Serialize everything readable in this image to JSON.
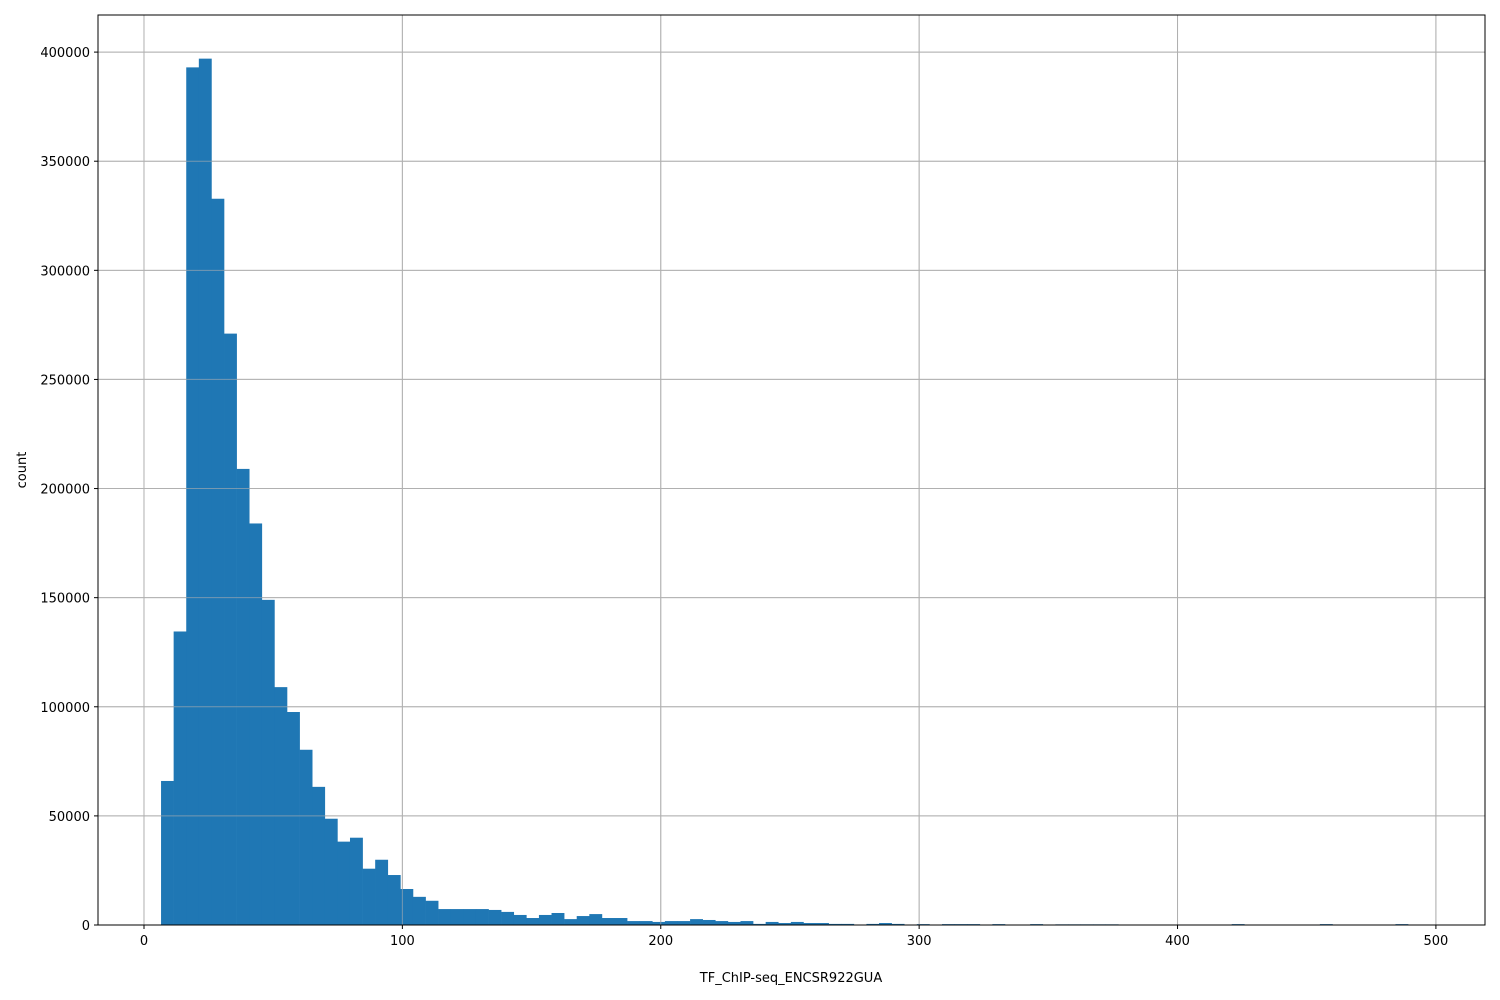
{
  "chart_data": {
    "type": "bar",
    "subtype": "histogram",
    "title": "",
    "xlabel": "TF_ChIP-seq_ENCSR922GUA",
    "ylabel": "count",
    "xlim": [
      -17.8,
      519
    ],
    "ylim": [
      0,
      417000
    ],
    "grid": true,
    "bar_color": "#1f77b4",
    "grid_color": "#b0b0b0",
    "bin_start": 6.6,
    "bin_width": 4.875,
    "values": [
      66000,
      134500,
      393000,
      397000,
      332800,
      271000,
      209000,
      184000,
      149000,
      109000,
      97600,
      80300,
      63300,
      48700,
      38200,
      40000,
      25800,
      29900,
      22900,
      16500,
      12900,
      11100,
      7300,
      7300,
      7300,
      7300,
      6900,
      6000,
      4600,
      3200,
      4600,
      5500,
      2700,
      4100,
      5000,
      3200,
      3200,
      1800,
      1800,
      1400,
      1800,
      1800,
      2700,
      2300,
      1800,
      1400,
      1800,
      500,
      1400,
      900,
      1400,
      900,
      900,
      500,
      500,
      200,
      500,
      900,
      500,
      200,
      400,
      0,
      400,
      400,
      400,
      0,
      400,
      0,
      0,
      400,
      0,
      300,
      300,
      300,
      300,
      300,
      0,
      0,
      0,
      0,
      0,
      0,
      0,
      0,
      0,
      400,
      0,
      0,
      0,
      0,
      0,
      0,
      400,
      0,
      0,
      0,
      0,
      0,
      400,
      0
    ],
    "x_ticks": [
      "0",
      "100",
      "200",
      "300",
      "400",
      "500"
    ],
    "x_tick_values": [
      0,
      100,
      200,
      300,
      400,
      500
    ],
    "y_ticks": [
      "0",
      "50000",
      "100000",
      "150000",
      "200000",
      "250000",
      "300000",
      "350000",
      "400000"
    ],
    "y_tick_values": [
      0,
      50000,
      100000,
      150000,
      200000,
      250000,
      300000,
      350000,
      400000
    ]
  }
}
